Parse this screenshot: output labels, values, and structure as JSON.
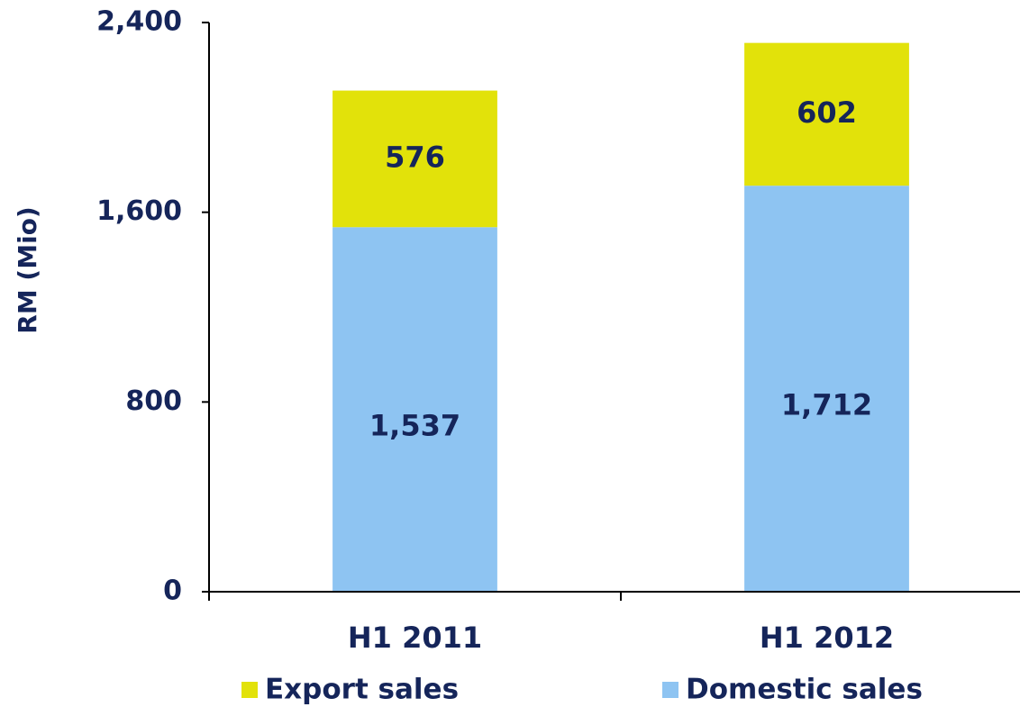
{
  "chart_data": {
    "type": "stacked_bar",
    "y_label": "RM (Mio)",
    "categories": [
      "H1 2011",
      "H1 2012"
    ],
    "series": [
      {
        "name": "Domestic sales",
        "color": "#8ec4f2",
        "values": [
          1537,
          1712
        ],
        "value_labels": [
          "1,537",
          "1,712"
        ]
      },
      {
        "name": "Export sales",
        "color": "#e2e20a",
        "values": [
          576,
          602
        ]
      }
    ],
    "ylim": [
      0,
      2400
    ],
    "yticks": [
      0,
      800,
      {
        "value": 1600,
        "label": "1,600"
      },
      {
        "value": 2400,
        "label": "2,400"
      }
    ]
  }
}
